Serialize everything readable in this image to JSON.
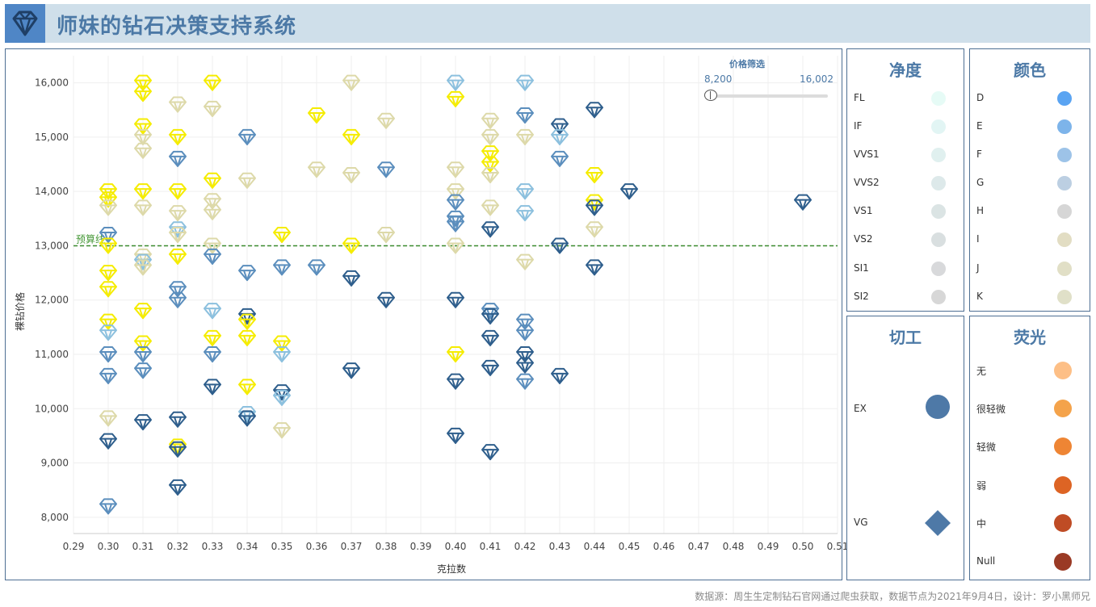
{
  "app": {
    "title": "师妹的钻石决策支持系统",
    "logo_icon": "diamond-icon",
    "footer": "数据源：周生生定制钻石官网通过爬虫获取，数据节点为2021年9月4日，设计：罗小黑师兄"
  },
  "price_filter": {
    "title": "价格筛选",
    "min_label": "8,200",
    "max_label": "16,002",
    "min": 8200,
    "max": 16002
  },
  "legends": {
    "clarity": {
      "title": "净度",
      "items": [
        {
          "label": "FL",
          "color": "#e6fbf6"
        },
        {
          "label": "IF",
          "color": "#e2f5f4"
        },
        {
          "label": "VVS1",
          "color": "#e0f0ef"
        },
        {
          "label": "VVS2",
          "color": "#dde9ea"
        },
        {
          "label": "VS1",
          "color": "#dbe4e4"
        },
        {
          "label": "VS2",
          "color": "#d9dfe0"
        },
        {
          "label": "SI1",
          "color": "#d8d9db"
        },
        {
          "label": "SI2",
          "color": "#d7d7d7"
        }
      ]
    },
    "color": {
      "title": "颜色",
      "items": [
        {
          "label": "D",
          "color": "#5aa4f2"
        },
        {
          "label": "E",
          "color": "#7db4ea"
        },
        {
          "label": "F",
          "color": "#9dc3e8"
        },
        {
          "label": "G",
          "color": "#bccfe2"
        },
        {
          "label": "H",
          "color": "#d6d6d6"
        },
        {
          "label": "I",
          "color": "#e2ddc3"
        },
        {
          "label": "J",
          "color": "#e1dfc6"
        },
        {
          "label": "K",
          "color": "#e0e0c8"
        }
      ]
    },
    "cut": {
      "title": "切工",
      "items": [
        {
          "label": "EX",
          "shape": "circle",
          "color": "#4e79a7"
        },
        {
          "label": "VG",
          "shape": "diamond",
          "color": "#4e79a7"
        }
      ]
    },
    "fluorescence": {
      "title": "荧光",
      "items": [
        {
          "label": "无",
          "color": "#fdbf86"
        },
        {
          "label": "很轻微",
          "color": "#f4a34b"
        },
        {
          "label": "轻微",
          "color": "#ee8534"
        },
        {
          "label": "弱",
          "color": "#dd6424"
        },
        {
          "label": "中",
          "color": "#bf4c25"
        },
        {
          "label": "Null",
          "color": "#9a3a25"
        }
      ]
    }
  },
  "chart_data": {
    "type": "scatter",
    "title": "",
    "xlabel": "克拉数",
    "ylabel": "裸钻价格",
    "xlim": [
      0.29,
      0.51
    ],
    "ylim": [
      7700,
      16500
    ],
    "x_ticks": [
      0.29,
      0.3,
      0.31,
      0.32,
      0.33,
      0.34,
      0.35,
      0.36,
      0.37,
      0.38,
      0.39,
      0.4,
      0.41,
      0.42,
      0.43,
      0.44,
      0.45,
      0.46,
      0.47,
      0.48,
      0.49,
      0.5,
      0.51
    ],
    "x_tick_labels": [
      "0.29",
      "0.30",
      "0.31",
      "0.32",
      "0.33",
      "0.34",
      "0.35",
      "0.36",
      "0.37",
      "0.38",
      "0.39",
      "0.40",
      "0.41",
      "0.42",
      "0.43",
      "0.44",
      "0.45",
      "0.46",
      "0.47",
      "0.48",
      "0.49",
      "0.50",
      "0.51"
    ],
    "y_ticks": [
      8000,
      9000,
      10000,
      11000,
      12000,
      13000,
      14000,
      15000,
      16000
    ],
    "y_tick_labels": [
      "8,000",
      "9,000",
      "10,000",
      "11,000",
      "12,000",
      "13,000",
      "14,000",
      "15,000",
      "16,000"
    ],
    "reference_line": {
      "label": "预算线",
      "value": 13000,
      "color": "#3a8a2e"
    },
    "marker": "diamond-icon",
    "palette": {
      "Y": "#f5ec00",
      "T": "#ddd9a9",
      "L": "#8cc0de",
      "M": "#5b8ebd",
      "D": "#2e5e8c"
    },
    "points": [
      {
        "x": 0.3,
        "y": 14000,
        "c": "Y"
      },
      {
        "x": 0.3,
        "y": 13850,
        "c": "Y"
      },
      {
        "x": 0.3,
        "y": 13700,
        "c": "T"
      },
      {
        "x": 0.3,
        "y": 13200,
        "c": "M"
      },
      {
        "x": 0.3,
        "y": 13000,
        "c": "Y"
      },
      {
        "x": 0.3,
        "y": 12500,
        "c": "Y"
      },
      {
        "x": 0.3,
        "y": 12200,
        "c": "Y"
      },
      {
        "x": 0.3,
        "y": 11600,
        "c": "Y"
      },
      {
        "x": 0.3,
        "y": 11400,
        "c": "L"
      },
      {
        "x": 0.3,
        "y": 11000,
        "c": "M"
      },
      {
        "x": 0.3,
        "y": 10600,
        "c": "M"
      },
      {
        "x": 0.3,
        "y": 9820,
        "c": "T"
      },
      {
        "x": 0.3,
        "y": 9400,
        "c": "D"
      },
      {
        "x": 0.3,
        "y": 8200,
        "c": "M"
      },
      {
        "x": 0.31,
        "y": 16000,
        "c": "Y"
      },
      {
        "x": 0.31,
        "y": 15800,
        "c": "Y"
      },
      {
        "x": 0.31,
        "y": 15200,
        "c": "Y"
      },
      {
        "x": 0.31,
        "y": 15000,
        "c": "T"
      },
      {
        "x": 0.31,
        "y": 14750,
        "c": "T"
      },
      {
        "x": 0.31,
        "y": 14000,
        "c": "Y"
      },
      {
        "x": 0.31,
        "y": 13700,
        "c": "T"
      },
      {
        "x": 0.31,
        "y": 12800,
        "c": "T"
      },
      {
        "x": 0.31,
        "y": 12700,
        "c": "L"
      },
      {
        "x": 0.31,
        "y": 12600,
        "c": "T"
      },
      {
        "x": 0.31,
        "y": 11800,
        "c": "Y"
      },
      {
        "x": 0.31,
        "y": 11200,
        "c": "Y"
      },
      {
        "x": 0.31,
        "y": 11000,
        "c": "M"
      },
      {
        "x": 0.31,
        "y": 10700,
        "c": "M"
      },
      {
        "x": 0.31,
        "y": 9750,
        "c": "D"
      },
      {
        "x": 0.32,
        "y": 15600,
        "c": "T"
      },
      {
        "x": 0.32,
        "y": 15000,
        "c": "Y"
      },
      {
        "x": 0.32,
        "y": 14600,
        "c": "M"
      },
      {
        "x": 0.32,
        "y": 14000,
        "c": "Y"
      },
      {
        "x": 0.32,
        "y": 13600,
        "c": "T"
      },
      {
        "x": 0.32,
        "y": 13300,
        "c": "L"
      },
      {
        "x": 0.32,
        "y": 13200,
        "c": "T"
      },
      {
        "x": 0.32,
        "y": 12800,
        "c": "Y"
      },
      {
        "x": 0.32,
        "y": 12200,
        "c": "M"
      },
      {
        "x": 0.32,
        "y": 12000,
        "c": "M"
      },
      {
        "x": 0.32,
        "y": 9800,
        "c": "D"
      },
      {
        "x": 0.32,
        "y": 9300,
        "c": "Y"
      },
      {
        "x": 0.32,
        "y": 9250,
        "c": "D"
      },
      {
        "x": 0.32,
        "y": 8550,
        "c": "D"
      },
      {
        "x": 0.33,
        "y": 16000,
        "c": "Y"
      },
      {
        "x": 0.33,
        "y": 15520,
        "c": "T"
      },
      {
        "x": 0.33,
        "y": 14200,
        "c": "Y"
      },
      {
        "x": 0.33,
        "y": 13820,
        "c": "T"
      },
      {
        "x": 0.33,
        "y": 13620,
        "c": "T"
      },
      {
        "x": 0.33,
        "y": 13000,
        "c": "T"
      },
      {
        "x": 0.33,
        "y": 12800,
        "c": "M"
      },
      {
        "x": 0.33,
        "y": 11800,
        "c": "L"
      },
      {
        "x": 0.33,
        "y": 11300,
        "c": "Y"
      },
      {
        "x": 0.33,
        "y": 11000,
        "c": "M"
      },
      {
        "x": 0.33,
        "y": 10400,
        "c": "D"
      },
      {
        "x": 0.34,
        "y": 15000,
        "c": "M"
      },
      {
        "x": 0.34,
        "y": 14200,
        "c": "T"
      },
      {
        "x": 0.34,
        "y": 12500,
        "c": "M"
      },
      {
        "x": 0.34,
        "y": 11700,
        "c": "D"
      },
      {
        "x": 0.34,
        "y": 11600,
        "c": "Y"
      },
      {
        "x": 0.34,
        "y": 11300,
        "c": "Y"
      },
      {
        "x": 0.34,
        "y": 10400,
        "c": "Y"
      },
      {
        "x": 0.34,
        "y": 9900,
        "c": "L"
      },
      {
        "x": 0.34,
        "y": 9820,
        "c": "D"
      },
      {
        "x": 0.35,
        "y": 13200,
        "c": "Y"
      },
      {
        "x": 0.35,
        "y": 12600,
        "c": "M"
      },
      {
        "x": 0.35,
        "y": 11200,
        "c": "Y"
      },
      {
        "x": 0.35,
        "y": 11000,
        "c": "L"
      },
      {
        "x": 0.35,
        "y": 10300,
        "c": "D"
      },
      {
        "x": 0.35,
        "y": 10200,
        "c": "L"
      },
      {
        "x": 0.35,
        "y": 9600,
        "c": "T"
      },
      {
        "x": 0.36,
        "y": 15400,
        "c": "Y"
      },
      {
        "x": 0.36,
        "y": 14400,
        "c": "T"
      },
      {
        "x": 0.36,
        "y": 12600,
        "c": "M"
      },
      {
        "x": 0.37,
        "y": 16000,
        "c": "T"
      },
      {
        "x": 0.37,
        "y": 15000,
        "c": "Y"
      },
      {
        "x": 0.37,
        "y": 14300,
        "c": "T"
      },
      {
        "x": 0.37,
        "y": 13000,
        "c": "Y"
      },
      {
        "x": 0.37,
        "y": 12400,
        "c": "D"
      },
      {
        "x": 0.37,
        "y": 10700,
        "c": "D"
      },
      {
        "x": 0.38,
        "y": 15300,
        "c": "T"
      },
      {
        "x": 0.38,
        "y": 14400,
        "c": "M"
      },
      {
        "x": 0.38,
        "y": 13200,
        "c": "T"
      },
      {
        "x": 0.38,
        "y": 12000,
        "c": "D"
      },
      {
        "x": 0.4,
        "y": 16000,
        "c": "L"
      },
      {
        "x": 0.4,
        "y": 15700,
        "c": "Y"
      },
      {
        "x": 0.4,
        "y": 14400,
        "c": "T"
      },
      {
        "x": 0.4,
        "y": 14000,
        "c": "T"
      },
      {
        "x": 0.4,
        "y": 13800,
        "c": "M"
      },
      {
        "x": 0.4,
        "y": 13500,
        "c": "M"
      },
      {
        "x": 0.4,
        "y": 13400,
        "c": "M"
      },
      {
        "x": 0.4,
        "y": 13000,
        "c": "T"
      },
      {
        "x": 0.4,
        "y": 12000,
        "c": "D"
      },
      {
        "x": 0.4,
        "y": 11000,
        "c": "Y"
      },
      {
        "x": 0.4,
        "y": 10500,
        "c": "D"
      },
      {
        "x": 0.4,
        "y": 9500,
        "c": "D"
      },
      {
        "x": 0.41,
        "y": 15300,
        "c": "T"
      },
      {
        "x": 0.41,
        "y": 15000,
        "c": "T"
      },
      {
        "x": 0.41,
        "y": 14700,
        "c": "Y"
      },
      {
        "x": 0.41,
        "y": 14500,
        "c": "Y"
      },
      {
        "x": 0.41,
        "y": 14300,
        "c": "T"
      },
      {
        "x": 0.41,
        "y": 13700,
        "c": "T"
      },
      {
        "x": 0.41,
        "y": 13300,
        "c": "D"
      },
      {
        "x": 0.41,
        "y": 11800,
        "c": "M"
      },
      {
        "x": 0.41,
        "y": 11700,
        "c": "D"
      },
      {
        "x": 0.41,
        "y": 11300,
        "c": "D"
      },
      {
        "x": 0.41,
        "y": 10750,
        "c": "D"
      },
      {
        "x": 0.41,
        "y": 9200,
        "c": "D"
      },
      {
        "x": 0.42,
        "y": 16000,
        "c": "L"
      },
      {
        "x": 0.42,
        "y": 15400,
        "c": "M"
      },
      {
        "x": 0.42,
        "y": 15000,
        "c": "T"
      },
      {
        "x": 0.42,
        "y": 14000,
        "c": "L"
      },
      {
        "x": 0.42,
        "y": 13600,
        "c": "L"
      },
      {
        "x": 0.42,
        "y": 12700,
        "c": "T"
      },
      {
        "x": 0.42,
        "y": 11600,
        "c": "M"
      },
      {
        "x": 0.42,
        "y": 11400,
        "c": "M"
      },
      {
        "x": 0.42,
        "y": 11000,
        "c": "D"
      },
      {
        "x": 0.42,
        "y": 10800,
        "c": "D"
      },
      {
        "x": 0.42,
        "y": 10500,
        "c": "M"
      },
      {
        "x": 0.43,
        "y": 15200,
        "c": "D"
      },
      {
        "x": 0.43,
        "y": 15000,
        "c": "L"
      },
      {
        "x": 0.43,
        "y": 14600,
        "c": "M"
      },
      {
        "x": 0.43,
        "y": 13000,
        "c": "D"
      },
      {
        "x": 0.43,
        "y": 10600,
        "c": "D"
      },
      {
        "x": 0.44,
        "y": 15500,
        "c": "D"
      },
      {
        "x": 0.44,
        "y": 14300,
        "c": "Y"
      },
      {
        "x": 0.44,
        "y": 13800,
        "c": "Y"
      },
      {
        "x": 0.44,
        "y": 13700,
        "c": "D"
      },
      {
        "x": 0.44,
        "y": 13300,
        "c": "T"
      },
      {
        "x": 0.44,
        "y": 12600,
        "c": "D"
      },
      {
        "x": 0.45,
        "y": 14000,
        "c": "D"
      },
      {
        "x": 0.5,
        "y": 13800,
        "c": "D"
      }
    ]
  }
}
